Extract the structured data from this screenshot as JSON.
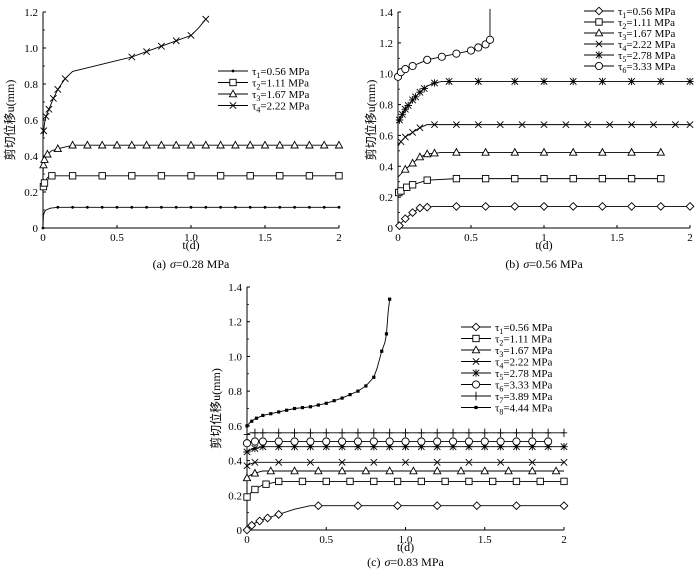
{
  "chart_data": [
    {
      "type": "line",
      "caption_prefix": "(a)",
      "caption_sigma": "σ",
      "caption_suffix": "=0.28 MPa",
      "xlabel": "t(d)",
      "ylabel": "剪切位移u(mm)",
      "xlim": [
        0,
        2
      ],
      "ylim": [
        0,
        1.2
      ],
      "xticks": [
        "0",
        "0.5",
        "1.0",
        "1.5",
        "2"
      ],
      "yticks": [
        "0",
        "0.2",
        "0.4",
        "0.6",
        "0.8",
        "1.0",
        "1.2"
      ],
      "legend_position": "right",
      "series": [
        {
          "sym": "τ",
          "sub": "1",
          "val": "=0.56 MPa",
          "marker": "dot",
          "x": [
            0,
            0.003,
            0.01,
            0.02,
            0.05,
            0.1,
            0.2,
            0.4,
            0.7,
            1.0,
            1.3,
            1.6,
            2.0
          ],
          "y": [
            0,
            0.07,
            0.09,
            0.1,
            0.11,
            0.115,
            0.115,
            0.115,
            0.115,
            0.115,
            0.115,
            0.115,
            0.115
          ],
          "mx": [
            0,
            0.1,
            0.2,
            0.3,
            0.4,
            0.5,
            0.6,
            0.7,
            0.8,
            0.9,
            1.0,
            1.1,
            1.2,
            1.3,
            1.4,
            1.5,
            1.6,
            1.7,
            1.8,
            1.9,
            2.0
          ]
        },
        {
          "sym": "τ",
          "sub": "2",
          "val": "=1.11 MPa",
          "marker": "square",
          "x": [
            0,
            0.003,
            0.01,
            0.03,
            0.06,
            0.1,
            0.2,
            0.5,
            1.0,
            1.5,
            2.0
          ],
          "y": [
            0.2,
            0.23,
            0.25,
            0.28,
            0.29,
            0.29,
            0.29,
            0.29,
            0.29,
            0.29,
            0.29
          ],
          "mx": [
            0.003,
            0.01,
            0.06,
            0.2,
            0.4,
            0.6,
            0.8,
            1.0,
            1.2,
            1.4,
            1.6,
            1.8,
            2.0
          ]
        },
        {
          "sym": "τ",
          "sub": "3",
          "val": "=1.67 MPa",
          "marker": "triangle",
          "x": [
            0,
            0.003,
            0.01,
            0.03,
            0.06,
            0.1,
            0.2,
            0.4,
            0.7,
            1.0,
            1.5,
            2.0
          ],
          "y": [
            0.3,
            0.35,
            0.38,
            0.41,
            0.43,
            0.44,
            0.46,
            0.46,
            0.46,
            0.46,
            0.46,
            0.46
          ],
          "mx": [
            0.003,
            0.01,
            0.03,
            0.1,
            0.2,
            0.3,
            0.4,
            0.5,
            0.6,
            0.7,
            0.8,
            0.9,
            1.0,
            1.1,
            1.2,
            1.3,
            1.4,
            1.5,
            1.6,
            1.7,
            1.8,
            1.9,
            2.0
          ]
        },
        {
          "sym": "τ",
          "sub": "4",
          "val": "=2.22 MPa",
          "marker": "x",
          "x": [
            0,
            0.005,
            0.01,
            0.02,
            0.04,
            0.07,
            0.1,
            0.15,
            0.2,
            0.3,
            0.4,
            0.5,
            0.6,
            0.7,
            0.8,
            0.9,
            1.0,
            1.05,
            1.1
          ],
          "y": [
            0.5,
            0.54,
            0.58,
            0.62,
            0.66,
            0.72,
            0.77,
            0.83,
            0.87,
            0.89,
            0.91,
            0.93,
            0.95,
            0.98,
            1.01,
            1.04,
            1.07,
            1.11,
            1.16
          ],
          "mx": [
            0.005,
            0.02,
            0.04,
            0.07,
            0.1,
            0.15,
            0.6,
            0.7,
            0.8,
            0.9,
            1.0,
            1.1
          ]
        }
      ]
    },
    {
      "type": "line",
      "caption_prefix": "(b)",
      "caption_sigma": "σ",
      "caption_suffix": "=0.56 MPa",
      "xlabel": "t(d)",
      "ylabel": "剪切位移u(mm)",
      "xlim": [
        0,
        2
      ],
      "ylim": [
        0,
        1.4
      ],
      "xticks": [
        "0",
        "0.5",
        "1",
        "1.5",
        "2"
      ],
      "yticks": [
        "0",
        "0.2",
        "0.4",
        "0.6",
        "0.8",
        "1.0",
        "1.2",
        "1.4"
      ],
      "legend_position": "top-right",
      "series": [
        {
          "sym": "τ",
          "sub": "1",
          "val": "=0.56 MPa",
          "marker": "diamond",
          "x": [
            0,
            0.02,
            0.05,
            0.1,
            0.15,
            0.25,
            0.5,
            1.0,
            1.5,
            2.0
          ],
          "y": [
            0,
            0.03,
            0.06,
            0.1,
            0.13,
            0.14,
            0.14,
            0.14,
            0.14,
            0.14
          ],
          "mx": [
            0.01,
            0.05,
            0.1,
            0.15,
            0.2,
            0.4,
            0.6,
            0.8,
            1.0,
            1.2,
            1.4,
            1.6,
            1.8,
            2.0
          ]
        },
        {
          "sym": "τ",
          "sub": "2",
          "val": "=1.11 MPa",
          "marker": "square",
          "x": [
            0,
            0.005,
            0.02,
            0.05,
            0.1,
            0.2,
            0.4,
            0.8,
            1.2,
            1.6,
            1.8
          ],
          "y": [
            0.22,
            0.23,
            0.24,
            0.26,
            0.28,
            0.31,
            0.32,
            0.32,
            0.32,
            0.32,
            0.32
          ],
          "mx": [
            0.005,
            0.02,
            0.06,
            0.1,
            0.2,
            0.4,
            0.6,
            0.8,
            1.0,
            1.2,
            1.4,
            1.6,
            1.8
          ]
        },
        {
          "sym": "τ",
          "sub": "3",
          "val": "=1.67 MPa",
          "marker": "triangle",
          "x": [
            0,
            0.02,
            0.05,
            0.1,
            0.15,
            0.2,
            0.3,
            0.5,
            1.0,
            1.5,
            1.8
          ],
          "y": [
            0.33,
            0.35,
            0.38,
            0.42,
            0.46,
            0.48,
            0.49,
            0.49,
            0.49,
            0.49,
            0.49
          ],
          "mx": [
            0.05,
            0.1,
            0.15,
            0.2,
            0.25,
            0.4,
            0.6,
            0.8,
            1.0,
            1.2,
            1.4,
            1.6,
            1.8
          ]
        },
        {
          "sym": "τ",
          "sub": "4",
          "val": "=2.22 MPa",
          "marker": "x",
          "x": [
            0,
            0.02,
            0.05,
            0.1,
            0.15,
            0.2,
            0.3,
            0.5,
            1.0,
            1.5,
            2.0
          ],
          "y": [
            0.53,
            0.56,
            0.59,
            0.62,
            0.65,
            0.67,
            0.67,
            0.67,
            0.67,
            0.67,
            0.67
          ],
          "mx": [
            0.02,
            0.05,
            0.1,
            0.15,
            0.25,
            0.4,
            0.55,
            0.7,
            0.85,
            1.0,
            1.15,
            1.3,
            1.45,
            1.6,
            1.75,
            1.9,
            2.0
          ]
        },
        {
          "sym": "τ",
          "sub": "5",
          "val": "=2.78 MPa",
          "marker": "star",
          "x": [
            0,
            0.02,
            0.05,
            0.1,
            0.15,
            0.2,
            0.25,
            0.3,
            0.5,
            1.0,
            1.5,
            2.0
          ],
          "y": [
            0.68,
            0.72,
            0.77,
            0.83,
            0.88,
            0.92,
            0.94,
            0.95,
            0.95,
            0.95,
            0.95,
            0.95
          ],
          "mx": [
            0.01,
            0.03,
            0.05,
            0.07,
            0.1,
            0.12,
            0.15,
            0.18,
            0.25,
            0.35,
            0.55,
            0.8,
            1.0,
            1.2,
            1.4,
            1.6,
            1.8,
            2.0
          ]
        },
        {
          "sym": "τ",
          "sub": "6",
          "val": "=3.33 MPa",
          "marker": "circle",
          "x": [
            0,
            0.02,
            0.05,
            0.1,
            0.15,
            0.2,
            0.3,
            0.4,
            0.5,
            0.55,
            0.6,
            0.63
          ],
          "y": [
            0.98,
            1.01,
            1.03,
            1.05,
            1.07,
            1.09,
            1.11,
            1.13,
            1.15,
            1.17,
            1.19,
            1.22
          ],
          "mx": [
            0,
            0.02,
            0.05,
            0.1,
            0.2,
            0.3,
            0.4,
            0.5,
            0.55,
            0.6,
            0.63
          ],
          "spike": [
            0.63,
            1.22,
            1.42
          ]
        }
      ]
    },
    {
      "type": "line",
      "caption_prefix": "(c)",
      "caption_sigma": "σ",
      "caption_suffix": "=0.83 MPa",
      "xlabel": "t(d)",
      "ylabel": "剪切位移u(mm)",
      "xlim": [
        0,
        2
      ],
      "ylim": [
        0,
        1.4
      ],
      "xticks": [
        "0",
        "0.5",
        "1.0",
        "1.5",
        "2"
      ],
      "yticks": [
        "0",
        "0.2",
        "0.4",
        "0.6",
        "0.8",
        "1.0",
        "1.2",
        "1.4"
      ],
      "legend_position": "right",
      "series": [
        {
          "sym": "τ",
          "sub": "1",
          "val": "=0.56 MPa",
          "marker": "diamond",
          "x": [
            0,
            0.02,
            0.05,
            0.1,
            0.2,
            0.3,
            0.4,
            0.6,
            1.0,
            1.5,
            2.0
          ],
          "y": [
            0,
            0.02,
            0.04,
            0.06,
            0.09,
            0.12,
            0.14,
            0.14,
            0.14,
            0.14,
            0.14
          ],
          "mx": [
            0,
            0.03,
            0.08,
            0.13,
            0.2,
            0.45,
            0.7,
            0.95,
            1.2,
            1.45,
            1.7,
            2.0
          ]
        },
        {
          "sym": "τ",
          "sub": "2",
          "val": "=1.11 MPa",
          "marker": "square",
          "x": [
            0,
            0.01,
            0.03,
            0.06,
            0.1,
            0.15,
            0.2,
            0.4,
            1.0,
            1.5,
            2.0
          ],
          "y": [
            0.19,
            0.2,
            0.22,
            0.24,
            0.26,
            0.27,
            0.28,
            0.28,
            0.28,
            0.28,
            0.28
          ],
          "mx": [
            0,
            0.05,
            0.12,
            0.2,
            0.35,
            0.5,
            0.65,
            0.8,
            0.95,
            1.1,
            1.25,
            1.4,
            1.55,
            1.7,
            1.85,
            2.0
          ]
        },
        {
          "sym": "τ",
          "sub": "3",
          "val": "=1.67 MPa",
          "marker": "triangle",
          "x": [
            0,
            0.01,
            0.03,
            0.06,
            0.1,
            0.2,
            0.5,
            1.0,
            1.5,
            2.0
          ],
          "y": [
            0.3,
            0.31,
            0.32,
            0.33,
            0.34,
            0.34,
            0.34,
            0.34,
            0.34,
            0.34
          ],
          "mx": [
            0,
            0.05,
            0.15,
            0.3,
            0.45,
            0.6,
            0.75,
            0.9,
            1.05,
            1.2,
            1.35,
            1.5,
            1.65,
            1.8,
            1.95
          ]
        },
        {
          "sym": "τ",
          "sub": "4",
          "val": "=2.22 MPa",
          "marker": "x",
          "x": [
            0,
            0.02,
            0.05,
            0.1,
            0.3,
            1.0,
            1.5,
            2.0
          ],
          "y": [
            0.37,
            0.38,
            0.39,
            0.39,
            0.39,
            0.39,
            0.39,
            0.39
          ],
          "mx": [
            0,
            0.05,
            0.2,
            0.4,
            0.6,
            0.8,
            1.0,
            1.2,
            1.4,
            1.6,
            1.8,
            2.0
          ]
        },
        {
          "sym": "τ",
          "sub": "5",
          "val": "=2.78 MPa",
          "marker": "star",
          "x": [
            0,
            0.02,
            0.05,
            0.1,
            0.5,
            1.0,
            1.5,
            2.0
          ],
          "y": [
            0.45,
            0.46,
            0.47,
            0.48,
            0.48,
            0.48,
            0.48,
            0.48
          ],
          "mx": [
            0,
            0.05,
            0.1,
            0.2,
            0.3,
            0.4,
            0.5,
            0.6,
            0.7,
            0.8,
            0.9,
            1.0,
            1.1,
            1.2,
            1.3,
            1.4,
            1.5,
            1.6,
            1.7,
            1.8,
            1.9,
            2.0
          ]
        },
        {
          "sym": "τ",
          "sub": "6",
          "val": "=3.33 MPa",
          "marker": "circle",
          "x": [
            0,
            0.02,
            0.05,
            0.1,
            0.5,
            1.0,
            1.5,
            1.9
          ],
          "y": [
            0.5,
            0.51,
            0.51,
            0.51,
            0.51,
            0.51,
            0.51,
            0.51
          ],
          "mx": [
            0,
            0.05,
            0.1,
            0.2,
            0.3,
            0.4,
            0.5,
            0.6,
            0.7,
            0.8,
            0.9,
            1.0,
            1.1,
            1.2,
            1.3,
            1.4,
            1.5,
            1.6,
            1.7,
            1.8,
            1.9
          ]
        },
        {
          "sym": "τ",
          "sub": "7",
          "val": "=3.89 MPa",
          "marker": "plus",
          "x": [
            0,
            0.02,
            0.05,
            0.1,
            0.5,
            1.0,
            1.5,
            2.0
          ],
          "y": [
            0.55,
            0.56,
            0.56,
            0.56,
            0.56,
            0.56,
            0.56,
            0.56
          ],
          "mx": [
            0,
            0.05,
            0.1,
            0.2,
            0.3,
            0.4,
            0.5,
            0.6,
            0.7,
            0.8,
            0.9,
            1.0,
            1.1,
            1.2,
            1.3,
            1.4,
            1.5,
            1.6,
            1.7,
            1.8,
            1.9,
            2.0
          ]
        },
        {
          "sym": "τ",
          "sub": "8",
          "val": "=4.44 MPa",
          "marker": "smallsq",
          "x": [
            0,
            0.02,
            0.05,
            0.1,
            0.2,
            0.3,
            0.4,
            0.5,
            0.6,
            0.7,
            0.75,
            0.8,
            0.82,
            0.85,
            0.87,
            0.88,
            0.89,
            0.9
          ],
          "y": [
            0.6,
            0.62,
            0.64,
            0.66,
            0.68,
            0.7,
            0.71,
            0.73,
            0.76,
            0.8,
            0.83,
            0.88,
            0.93,
            1.03,
            1.08,
            1.13,
            1.25,
            1.33
          ],
          "mx": [
            0,
            0.03,
            0.06,
            0.1,
            0.15,
            0.2,
            0.25,
            0.3,
            0.35,
            0.4,
            0.45,
            0.5,
            0.55,
            0.6,
            0.65,
            0.7,
            0.75,
            0.8,
            0.85,
            0.88,
            0.9
          ]
        }
      ]
    }
  ]
}
